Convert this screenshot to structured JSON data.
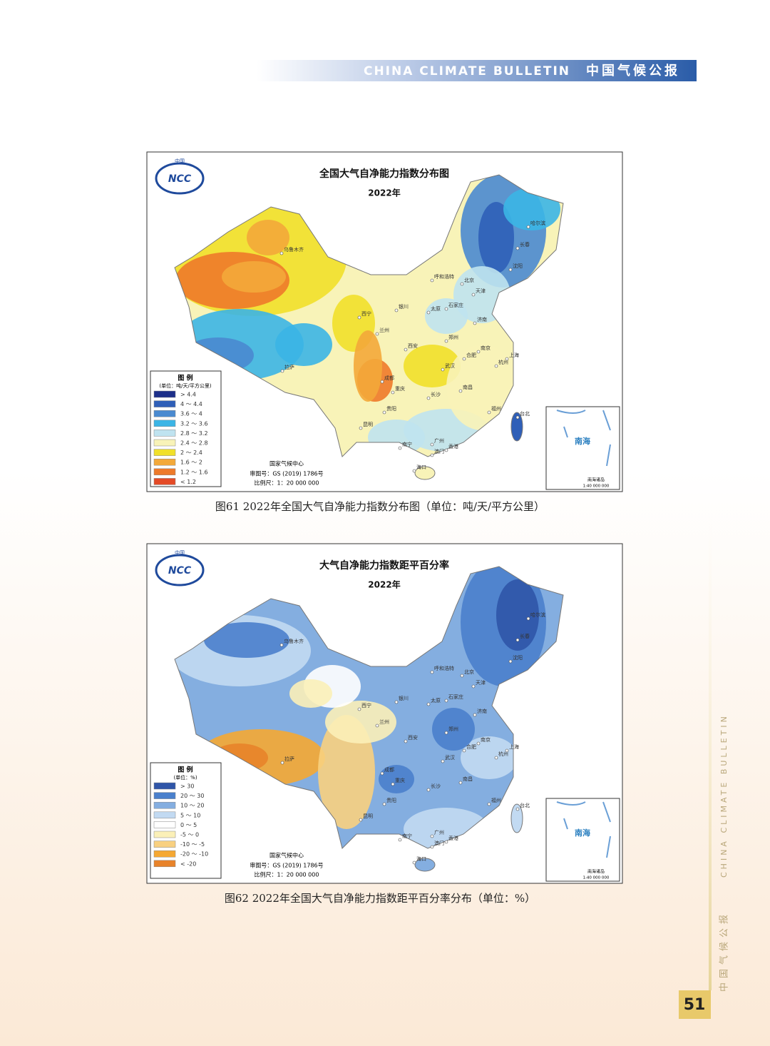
{
  "header": {
    "title_en": "CHINA CLIMATE BULLETIN",
    "title_cn": "中国气候公报"
  },
  "city_labels": [
    "乌鲁木齐",
    "拉萨",
    "西宁",
    "兰州",
    "银川",
    "呼和浩特",
    "北京",
    "天津",
    "石家庄",
    "太原",
    "济南",
    "郑州",
    "西安",
    "成都",
    "重庆",
    "贵阳",
    "昆明",
    "南宁",
    "广州",
    "香港",
    "澳门",
    "海口",
    "长沙",
    "武汉",
    "南昌",
    "合肥",
    "南京",
    "杭州",
    "上海",
    "福州",
    "台北",
    "沈阳",
    "长春",
    "哈尔滨"
  ],
  "figures": [
    {
      "logo_top": "中国",
      "logo_text": "NCC",
      "title": "全国大气自净能力指数分布图",
      "year": "2022年",
      "legend_title": "图 例",
      "legend_unit": "(单位：吨/天/平方公里)",
      "legend": [
        {
          "label": "> 4.4",
          "color": "#1c2f8a"
        },
        {
          "label": "4 ～ 4.4",
          "color": "#2f5fb8"
        },
        {
          "label": "3.6 ～ 4",
          "color": "#4a8ad0"
        },
        {
          "label": "3.2 ～ 3.6",
          "color": "#3bb5e6"
        },
        {
          "label": "2.8 ～ 3.2",
          "color": "#bfe3f0"
        },
        {
          "label": "2.4 ～ 2.8",
          "color": "#f8f3b8"
        },
        {
          "label": "2 ～ 2.4",
          "color": "#f1e02a"
        },
        {
          "label": "1.6 ～ 2",
          "color": "#f3a93a"
        },
        {
          "label": "1.2 ～ 1.6",
          "color": "#ee7a2a"
        },
        {
          "label": "< 1.2",
          "color": "#e44a26"
        }
      ],
      "agency": "国家气候中心",
      "review": "审图号：GS (2019) 1786号",
      "scale": "比例尺：1：20 000 000",
      "inset_title": "南海",
      "inset_label": "南海诸岛",
      "inset_scale": "1:40 000 000",
      "caption": "图61 2022年全国大气自净能力指数分布图（单位：吨/天/平方公里）"
    },
    {
      "logo_top": "中国",
      "logo_text": "NCC",
      "title": "大气自净能力指数距平百分率",
      "year": "2022年",
      "legend_title": "图 例",
      "legend_unit": "(单位：%)",
      "legend": [
        {
          "label": "> 30",
          "color": "#2f55a8"
        },
        {
          "label": "20 ～ 30",
          "color": "#4a80cc"
        },
        {
          "label": "10 ～ 20",
          "color": "#84aee0"
        },
        {
          "label": "5 ～ 10",
          "color": "#c2daf2"
        },
        {
          "label": "0 ～ 5",
          "color": "#ffffff"
        },
        {
          "label": "-5 ～ 0",
          "color": "#fbf0b8"
        },
        {
          "label": "-10 ～ -5",
          "color": "#f8d080"
        },
        {
          "label": "-20 ～ -10",
          "color": "#f5a833"
        },
        {
          "label": "< -20",
          "color": "#e8832a"
        }
      ],
      "agency": "国家气候中心",
      "review": "审图号：GS (2019) 1786号",
      "scale": "比例尺：1：20 000 000",
      "inset_title": "南海",
      "inset_label": "南海诸岛",
      "inset_scale": "1:40 000 000",
      "caption": "图62 2022年全国大气自净能力指数距平百分率分布（单位：%）"
    }
  ],
  "side": {
    "cn": "中国气候公报",
    "en": "CHINA CLIMATE BULLETIN"
  },
  "page_number": 51
}
